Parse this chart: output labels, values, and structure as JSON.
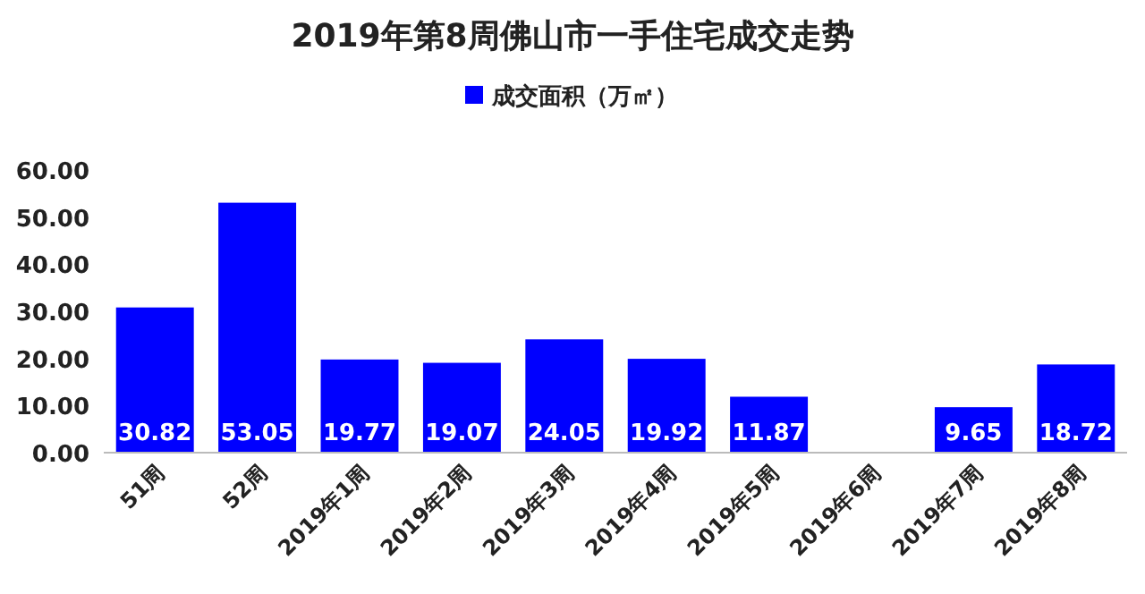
{
  "chart_data": {
    "type": "bar",
    "title": "2019年第8周佛山市一手住宅成交走势",
    "categories": [
      "51周",
      "52周",
      "2019年1周",
      "2019年2周",
      "2019年3周",
      "2019年4周",
      "2019年5周",
      "2019年6周",
      "2019年7周",
      "2019年8周"
    ],
    "series": [
      {
        "name": "成交面积（万㎡）",
        "color": "#0000ff",
        "values": [
          30.82,
          53.05,
          19.77,
          19.07,
          24.05,
          19.92,
          11.87,
          null,
          9.65,
          18.72
        ]
      }
    ],
    "ylim": [
      0,
      60
    ],
    "yticks": [
      {
        "value": 0,
        "label": "0.00"
      },
      {
        "value": 10,
        "label": "10.00"
      },
      {
        "value": 20,
        "label": "20.00"
      },
      {
        "value": 30,
        "label": "30.00"
      },
      {
        "value": 40,
        "label": "40.00"
      },
      {
        "value": 50,
        "label": "50.00"
      },
      {
        "value": 60,
        "label": "60.00"
      }
    ],
    "data_labels": true,
    "legend": "top",
    "grid": false
  }
}
